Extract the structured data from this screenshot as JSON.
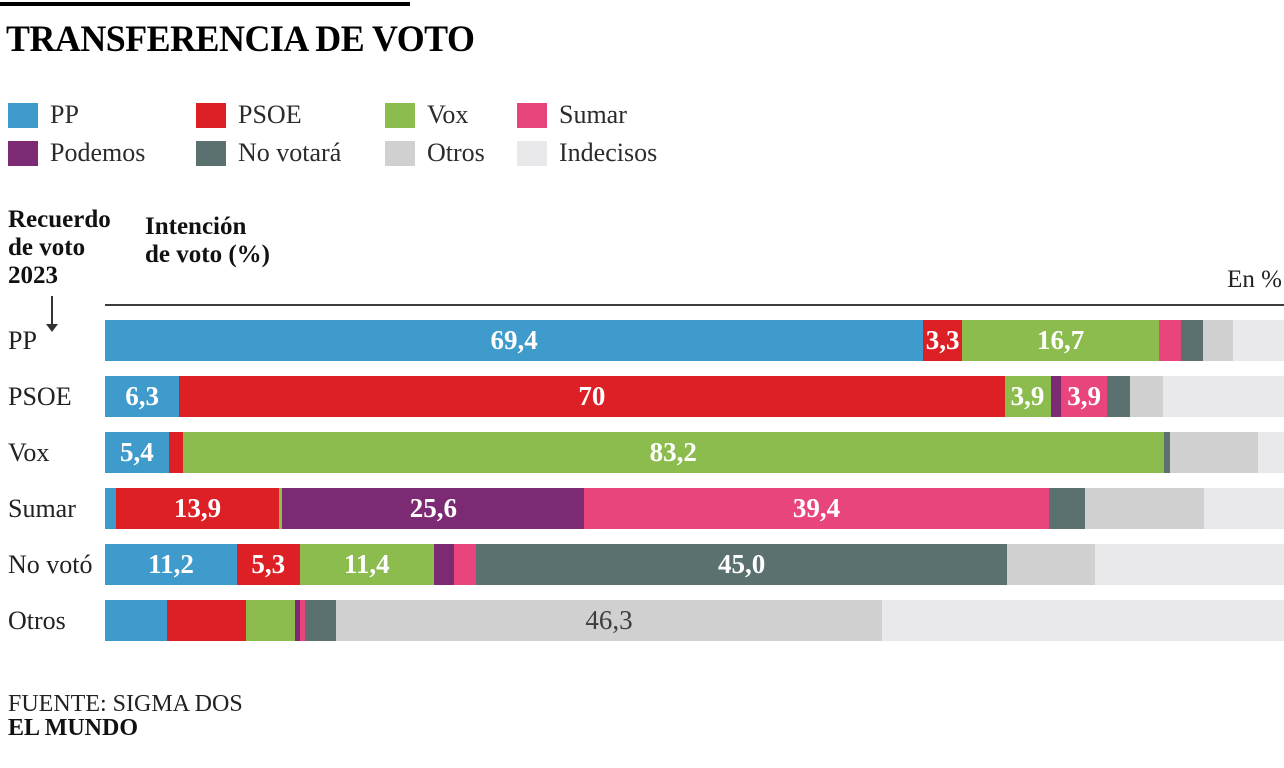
{
  "title": "TRANSFERENCIA DE VOTO",
  "legend": [
    {
      "label": "PP",
      "color": "#3e9bcb"
    },
    {
      "label": "PSOE",
      "color": "#dc2026"
    },
    {
      "label": "Vox",
      "color": "#8cbb4e"
    },
    {
      "label": "Sumar",
      "color": "#e8457d"
    },
    {
      "label": "Podemos",
      "color": "#7c2a74"
    },
    {
      "label": "No votará",
      "color": "#5a7170"
    },
    {
      "label": "Otros",
      "color": "#d0d0d0"
    },
    {
      "label": "Indecisos",
      "color": "#e9e9eb"
    }
  ],
  "axis": {
    "recall": {
      "line1": "Recuerdo",
      "line2": "de voto",
      "line3": "2023"
    },
    "intention": {
      "line1": "Intención",
      "line2": "de voto (%)"
    },
    "unit_label": "En %"
  },
  "footer": {
    "source": "FUENTE: SIGMA DOS",
    "brand": "EL MUNDO"
  },
  "chart_data": {
    "type": "bar",
    "stacked": true,
    "orientation": "horizontal",
    "unit": "%",
    "xlim": [
      0,
      100
    ],
    "title": "TRANSFERENCIA DE VOTO",
    "categories": [
      "PP",
      "PSOE",
      "Vox",
      "Sumar",
      "No votó",
      "Otros"
    ],
    "series": [
      {
        "name": "PP",
        "color": "#3e9bcb",
        "values": [
          69.4,
          6.3,
          5.4,
          0.9,
          11.2,
          5.3
        ]
      },
      {
        "name": "PSOE",
        "color": "#dc2026",
        "values": [
          3.3,
          70.0,
          1.2,
          13.9,
          5.3,
          6.7
        ]
      },
      {
        "name": "Vox",
        "color": "#8cbb4e",
        "values": [
          16.7,
          3.9,
          83.2,
          0.25,
          11.4,
          4.1
        ]
      },
      {
        "name": "Podemos",
        "color": "#7c2a74",
        "values": [
          0,
          0.9,
          0,
          25.6,
          1.7,
          0.4
        ]
      },
      {
        "name": "Sumar",
        "color": "#e8457d",
        "values": [
          1.9,
          3.9,
          0,
          39.4,
          1.9,
          0.5
        ]
      },
      {
        "name": "No votará",
        "color": "#5a7170",
        "values": [
          1.8,
          1.9,
          0.5,
          3.1,
          45.0,
          2.6
        ]
      },
      {
        "name": "Otros",
        "color": "#d0d0d0",
        "values": [
          2.6,
          2.8,
          7.5,
          10.1,
          7.5,
          46.3
        ]
      },
      {
        "name": "Indecisos",
        "color": "#e9e9eb",
        "values": [
          4.3,
          10.3,
          2.2,
          6.75,
          16.0,
          34.1
        ]
      }
    ],
    "value_labels": {
      "PP": [
        "69,4",
        "3,3",
        "16,7",
        "",
        "",
        "",
        "",
        ""
      ],
      "PSOE": [
        "6,3",
        "70",
        "3,9",
        "",
        "3,9",
        "",
        "",
        ""
      ],
      "Vox": [
        "5,4",
        "",
        "83,2",
        "",
        "",
        "",
        "",
        ""
      ],
      "Sumar": [
        "",
        "13,9",
        "",
        "25,6",
        "39,4",
        "",
        "",
        ""
      ],
      "No votó": [
        "11,2",
        "5,3",
        "11,4",
        "",
        "",
        "45,0",
        "",
        ""
      ],
      "Otros": [
        "",
        "",
        "",
        "",
        "",
        "",
        "46,3",
        ""
      ]
    },
    "legend_position": "top",
    "grid": false
  }
}
